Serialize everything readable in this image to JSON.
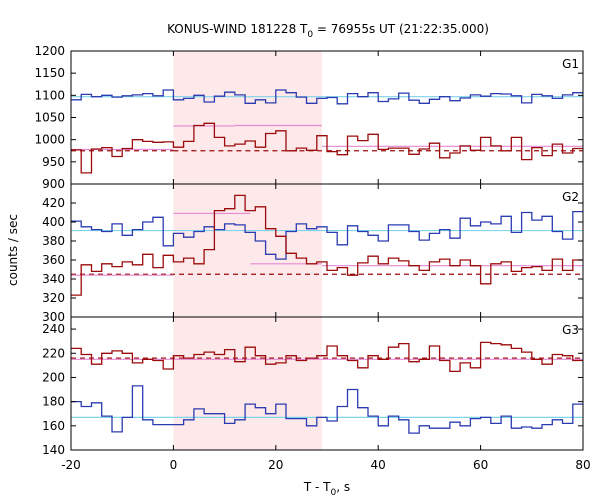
{
  "chart_data": {
    "type": "line",
    "title": "KONUS-WIND 181228 T",
    "title_sub": "0",
    "title_rest": " = 76955s UT (21:22:35.000)",
    "xlabel_main": "T - T",
    "xlabel_sub": "0",
    "xlabel_rest": ", s",
    "ylabel": "counts / sec",
    "xlim": [
      -20,
      80
    ],
    "xticks": [
      -20,
      0,
      20,
      40,
      60,
      80
    ],
    "shaded_interval": [
      0,
      29
    ],
    "colors": {
      "blue": "#2b3bb0",
      "red": "#9c0b0b",
      "pink": "#e589d3",
      "cyan": "#7fd3ea",
      "shade": "#fde8ea"
    },
    "panels": [
      {
        "name": "G1",
        "ylim": [
          900,
          1200
        ],
        "yticks": [
          900,
          950,
          1000,
          1050,
          1100,
          1150,
          1200
        ],
        "series": [
          {
            "color": "blue",
            "step": 2,
            "values": [
              1090,
              1102,
              1097,
              1100,
              1096,
              1099,
              1101,
              1104,
              1099,
              1112,
              1090,
              1093,
              1100,
              1085,
              1098,
              1107,
              1101,
              1082,
              1090,
              1083,
              1112,
              1106,
              1096,
              1082,
              1093,
              1095,
              1081,
              1104,
              1097,
              1106,
              1086,
              1092,
              1105,
              1089,
              1082,
              1091,
              1097,
              1088,
              1094,
              1101,
              1098,
              1104,
              1103,
              1099,
              1083,
              1102,
              1099,
              1093,
              1101,
              1106
            ]
          },
          {
            "color": "red",
            "step": 2,
            "values": [
              977,
              925,
              979,
              982,
              962,
              980,
              1000,
              996,
              994,
              995,
              983,
              996,
              1032,
              1037,
              1005,
              986,
              990,
              997,
              983,
              1014,
              1020,
              975,
              981,
              976,
              1009,
              973,
              966,
              1008,
              998,
              1012,
              978,
              981,
              981,
              967,
              979,
              992,
              959,
              970,
              986,
              976,
              1005,
              986,
              975,
              1005,
              955,
              982,
              964,
              990,
              970,
              980
            ]
          }
        ],
        "lines": [
          {
            "color": "cyan",
            "dashed": false,
            "segments": [
              [
                -20,
                80,
                1097
              ]
            ]
          },
          {
            "color": "red",
            "dashed": true,
            "segments": [
              [
                -20,
                0,
                975
              ],
              [
                30,
                80,
                975
              ]
            ]
          },
          {
            "color": "red",
            "dashed": true,
            "segments": [
              [
                0,
                29,
                975
              ]
            ]
          },
          {
            "color": "pink",
            "dashed": false,
            "segments": [
              [
                -20,
                0,
                978
              ],
              [
                0,
                12,
                1031
              ],
              [
                12,
                29,
                1032
              ],
              [
                29,
                80,
                985
              ]
            ]
          }
        ]
      },
      {
        "name": "G2",
        "ylim": [
          300,
          440
        ],
        "yticks": [
          300,
          320,
          340,
          360,
          380,
          400,
          420
        ],
        "series": [
          {
            "color": "blue",
            "step": 2,
            "values": [
              401,
              395,
              392,
              390,
              398,
              386,
              392,
              400,
              405,
              375,
              388,
              384,
              390,
              395,
              392,
              398,
              397,
              389,
              380,
              366,
              361,
              390,
              398,
              393,
              395,
              389,
              376,
              396,
              390,
              386,
              380,
              397,
              397,
              390,
              381,
              388,
              392,
              383,
              404,
              396,
              400,
              398,
              406,
              389,
              410,
              402,
              406,
              390,
              382,
              411
            ]
          },
          {
            "color": "red",
            "step": 2,
            "values": [
              323,
              355,
              348,
              356,
              353,
              358,
              355,
              366,
              352,
              365,
              358,
              362,
              356,
              371,
              412,
              414,
              428,
              412,
              416,
              393,
              385,
              367,
              362,
              356,
              358,
              349,
              352,
              344,
              357,
              364,
              356,
              362,
              359,
              354,
              349,
              358,
              361,
              354,
              360,
              354,
              335,
              356,
              358,
              348,
              352,
              353,
              349,
              361,
              349,
              360
            ]
          }
        ],
        "lines": [
          {
            "color": "cyan",
            "dashed": false,
            "segments": [
              [
                -20,
                80,
                391
              ]
            ]
          },
          {
            "color": "red",
            "dashed": true,
            "segments": [
              [
                -20,
                80,
                345
              ]
            ]
          },
          {
            "color": "pink",
            "dashed": false,
            "segments": [
              [
                -20,
                0,
                344
              ],
              [
                0,
                15,
                409
              ],
              [
                15,
                29,
                356
              ],
              [
                29,
                80,
                354
              ]
            ]
          }
        ]
      },
      {
        "name": "G3",
        "ylim": [
          140,
          250
        ],
        "yticks": [
          140,
          160,
          180,
          200,
          220,
          240
        ],
        "series": [
          {
            "color": "blue",
            "step": 2,
            "values": [
              180,
              176,
              179,
              168,
              155,
              167,
              193,
              165,
              161,
              161,
              161,
              165,
              174,
              170,
              170,
              162,
              165,
              178,
              175,
              170,
              178,
              166,
              166,
              160,
              167,
              164,
              176,
              190,
              175,
              168,
              160,
              168,
              165,
              154,
              160,
              158,
              158,
              163,
              160,
              166,
              167,
              162,
              168,
              158,
              159,
              158,
              161,
              165,
              162,
              178
            ]
          },
          {
            "color": "red",
            "step": 2,
            "values": [
              224,
              219,
              211,
              220,
              222,
              220,
              212,
              215,
              214,
              207,
              218,
              216,
              219,
              221,
              219,
              223,
              213,
              225,
              218,
              211,
              212,
              218,
              214,
              216,
              218,
              226,
              218,
              214,
              208,
              218,
              215,
              225,
              228,
              213,
              215,
              226,
              214,
              205,
              212,
              208,
              229,
              228,
              227,
              224,
              221,
              215,
              211,
              219,
              218,
              214
            ]
          }
        ],
        "lines": [
          {
            "color": "cyan",
            "dashed": false,
            "segments": [
              [
                -20,
                80,
                167
              ]
            ]
          },
          {
            "color": "red",
            "dashed": true,
            "segments": [
              [
                -20,
                80,
                216
              ]
            ]
          },
          {
            "color": "pink",
            "dashed": false,
            "segments": [
              [
                -20,
                80,
                215
              ]
            ]
          }
        ]
      }
    ]
  }
}
